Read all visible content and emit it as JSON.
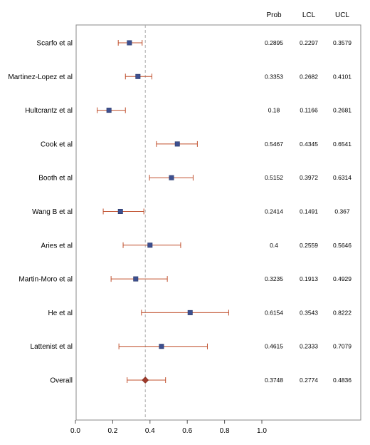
{
  "chart_data": {
    "type": "forest",
    "xlim": [
      0,
      1.0
    ],
    "x_ticks": [
      "0.0",
      "0.2",
      "0.4",
      "0.6",
      "0.8",
      "1.0"
    ],
    "x_tick_values": [
      0,
      0.2,
      0.4,
      0.6,
      0.8,
      1.0
    ],
    "reference_line": 0.3748,
    "columns": [
      "Prob",
      "LCL",
      "UCL"
    ],
    "colors": {
      "marker": "#3d4f8f",
      "overall_marker": "#a03a2a",
      "whisker": "#c0502e",
      "reference": "#aaaaaa",
      "frame": "#888888"
    },
    "studies": [
      {
        "name": "Scarfo et al",
        "prob": 0.2895,
        "lcl": 0.2297,
        "ucl": 0.3579,
        "prob_text": "0.2895",
        "lcl_text": "0.2297",
        "ucl_text": "0.3579"
      },
      {
        "name": "Martinez-Lopez et al",
        "prob": 0.3353,
        "lcl": 0.2682,
        "ucl": 0.4101,
        "prob_text": "0.3353",
        "lcl_text": "0.2682",
        "ucl_text": "0.4101"
      },
      {
        "name": "Hultcrantz et al",
        "prob": 0.18,
        "lcl": 0.1166,
        "ucl": 0.2681,
        "prob_text": "0.18",
        "lcl_text": "0.1166",
        "ucl_text": "0.2681"
      },
      {
        "name": "Cook et al",
        "prob": 0.5467,
        "lcl": 0.4345,
        "ucl": 0.6541,
        "prob_text": "0.5467",
        "lcl_text": "0.4345",
        "ucl_text": "0.6541"
      },
      {
        "name": "Booth et al",
        "prob": 0.5152,
        "lcl": 0.3972,
        "ucl": 0.6314,
        "prob_text": "0.5152",
        "lcl_text": "0.3972",
        "ucl_text": "0.6314"
      },
      {
        "name": "Wang B et al",
        "prob": 0.2414,
        "lcl": 0.1491,
        "ucl": 0.367,
        "prob_text": "0.2414",
        "lcl_text": "0.1491",
        "ucl_text": "0.367"
      },
      {
        "name": "Aries et al",
        "prob": 0.4,
        "lcl": 0.2559,
        "ucl": 0.5646,
        "prob_text": "0.4",
        "lcl_text": "0.2559",
        "ucl_text": "0.5646"
      },
      {
        "name": "Martin-Moro et al",
        "prob": 0.3235,
        "lcl": 0.1913,
        "ucl": 0.4929,
        "prob_text": "0.3235",
        "lcl_text": "0.1913",
        "ucl_text": "0.4929"
      },
      {
        "name": "He et al",
        "prob": 0.6154,
        "lcl": 0.3543,
        "ucl": 0.8222,
        "prob_text": "0.6154",
        "lcl_text": "0.3543",
        "ucl_text": "0.8222"
      },
      {
        "name": "Lattenist et al",
        "prob": 0.4615,
        "lcl": 0.2333,
        "ucl": 0.7079,
        "prob_text": "0.4615",
        "lcl_text": "0.2333",
        "ucl_text": "0.7079"
      }
    ],
    "overall": {
      "name": "Overall",
      "prob": 0.3748,
      "lcl": 0.2774,
      "ucl": 0.4836,
      "prob_text": "0.3748",
      "lcl_text": "0.2774",
      "ucl_text": "0.4836"
    }
  }
}
